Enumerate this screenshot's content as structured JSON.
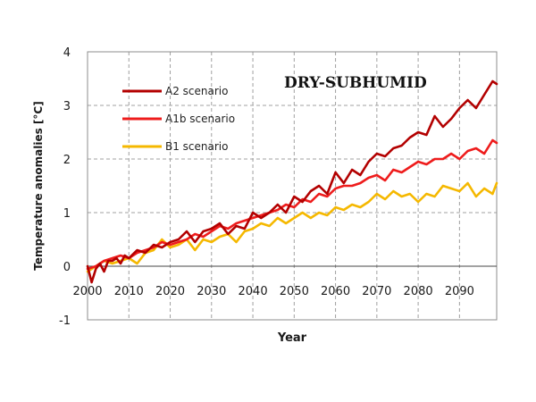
{
  "chart_data": {
    "type": "line",
    "title": "DRY-SUBHUMID",
    "xlabel": "Year",
    "ylabel": "Temperature anomalies [°C]",
    "xlim": [
      2000,
      2099
    ],
    "ylim": [
      -1,
      4
    ],
    "xticks": [
      "2000",
      "2010",
      "2020",
      "2030",
      "2040",
      "2050",
      "2060",
      "2070",
      "2080",
      "2090"
    ],
    "yticks": [
      "-1",
      "0",
      "1",
      "2",
      "3",
      "4"
    ],
    "grid": true,
    "legend_position": "top-left",
    "series": [
      {
        "name": "A2 scenario",
        "color": "#b30000",
        "x": [
          2000,
          2001,
          2002,
          2003,
          2004,
          2005,
          2006,
          2007,
          2008,
          2009,
          2010,
          2012,
          2014,
          2016,
          2018,
          2020,
          2022,
          2024,
          2026,
          2028,
          2030,
          2032,
          2034,
          2036,
          2038,
          2040,
          2042,
          2044,
          2046,
          2048,
          2050,
          2052,
          2054,
          2056,
          2058,
          2060,
          2062,
          2064,
          2066,
          2068,
          2070,
          2072,
          2074,
          2076,
          2078,
          2080,
          2082,
          2084,
          2086,
          2088,
          2090,
          2092,
          2094,
          2096,
          2098,
          2099
        ],
        "values": [
          0.0,
          -0.3,
          -0.05,
          0.05,
          -0.1,
          0.1,
          0.1,
          0.15,
          0.05,
          0.2,
          0.15,
          0.3,
          0.25,
          0.4,
          0.35,
          0.45,
          0.5,
          0.65,
          0.45,
          0.65,
          0.7,
          0.8,
          0.6,
          0.75,
          0.7,
          1.0,
          0.9,
          1.0,
          1.15,
          1.0,
          1.3,
          1.2,
          1.4,
          1.5,
          1.35,
          1.75,
          1.55,
          1.8,
          1.7,
          1.95,
          2.1,
          2.05,
          2.2,
          2.25,
          2.4,
          2.5,
          2.45,
          2.8,
          2.6,
          2.75,
          2.95,
          3.1,
          2.95,
          3.2,
          3.45,
          3.4
        ]
      },
      {
        "name": "A1b scenario",
        "color": "#ee1c1c",
        "x": [
          2000,
          2002,
          2004,
          2006,
          2008,
          2010,
          2012,
          2014,
          2016,
          2018,
          2020,
          2022,
          2024,
          2026,
          2028,
          2030,
          2032,
          2034,
          2036,
          2038,
          2040,
          2042,
          2044,
          2046,
          2048,
          2050,
          2052,
          2054,
          2056,
          2058,
          2060,
          2062,
          2064,
          2066,
          2068,
          2070,
          2072,
          2074,
          2076,
          2078,
          2080,
          2082,
          2084,
          2086,
          2088,
          2090,
          2092,
          2094,
          2096,
          2098,
          2099
        ],
        "values": [
          -0.05,
          0.0,
          0.1,
          0.15,
          0.2,
          0.15,
          0.25,
          0.3,
          0.35,
          0.45,
          0.4,
          0.45,
          0.5,
          0.6,
          0.55,
          0.65,
          0.75,
          0.7,
          0.8,
          0.85,
          0.9,
          0.95,
          1.0,
          1.05,
          1.15,
          1.1,
          1.25,
          1.2,
          1.35,
          1.3,
          1.45,
          1.5,
          1.5,
          1.55,
          1.65,
          1.7,
          1.6,
          1.8,
          1.75,
          1.85,
          1.95,
          1.9,
          2.0,
          2.0,
          2.1,
          2.0,
          2.15,
          2.2,
          2.1,
          2.35,
          2.3
        ]
      },
      {
        "name": "B1 scenario",
        "color": "#f5b800",
        "x": [
          2000,
          2002,
          2004,
          2006,
          2008,
          2010,
          2012,
          2014,
          2016,
          2018,
          2020,
          2022,
          2024,
          2026,
          2028,
          2030,
          2032,
          2034,
          2036,
          2038,
          2040,
          2042,
          2044,
          2046,
          2048,
          2050,
          2052,
          2054,
          2056,
          2058,
          2060,
          2062,
          2064,
          2066,
          2068,
          2070,
          2072,
          2074,
          2076,
          2078,
          2080,
          2082,
          2084,
          2086,
          2088,
          2090,
          2092,
          2094,
          2096,
          2098,
          2099
        ],
        "values": [
          -0.1,
          0.0,
          0.1,
          0.05,
          0.1,
          0.15,
          0.05,
          0.25,
          0.3,
          0.5,
          0.35,
          0.4,
          0.5,
          0.3,
          0.5,
          0.45,
          0.55,
          0.6,
          0.45,
          0.65,
          0.7,
          0.8,
          0.75,
          0.9,
          0.8,
          0.9,
          1.0,
          0.9,
          1.0,
          0.95,
          1.1,
          1.05,
          1.15,
          1.1,
          1.2,
          1.35,
          1.25,
          1.4,
          1.3,
          1.35,
          1.2,
          1.35,
          1.3,
          1.5,
          1.45,
          1.4,
          1.55,
          1.3,
          1.45,
          1.35,
          1.55
        ]
      }
    ]
  }
}
